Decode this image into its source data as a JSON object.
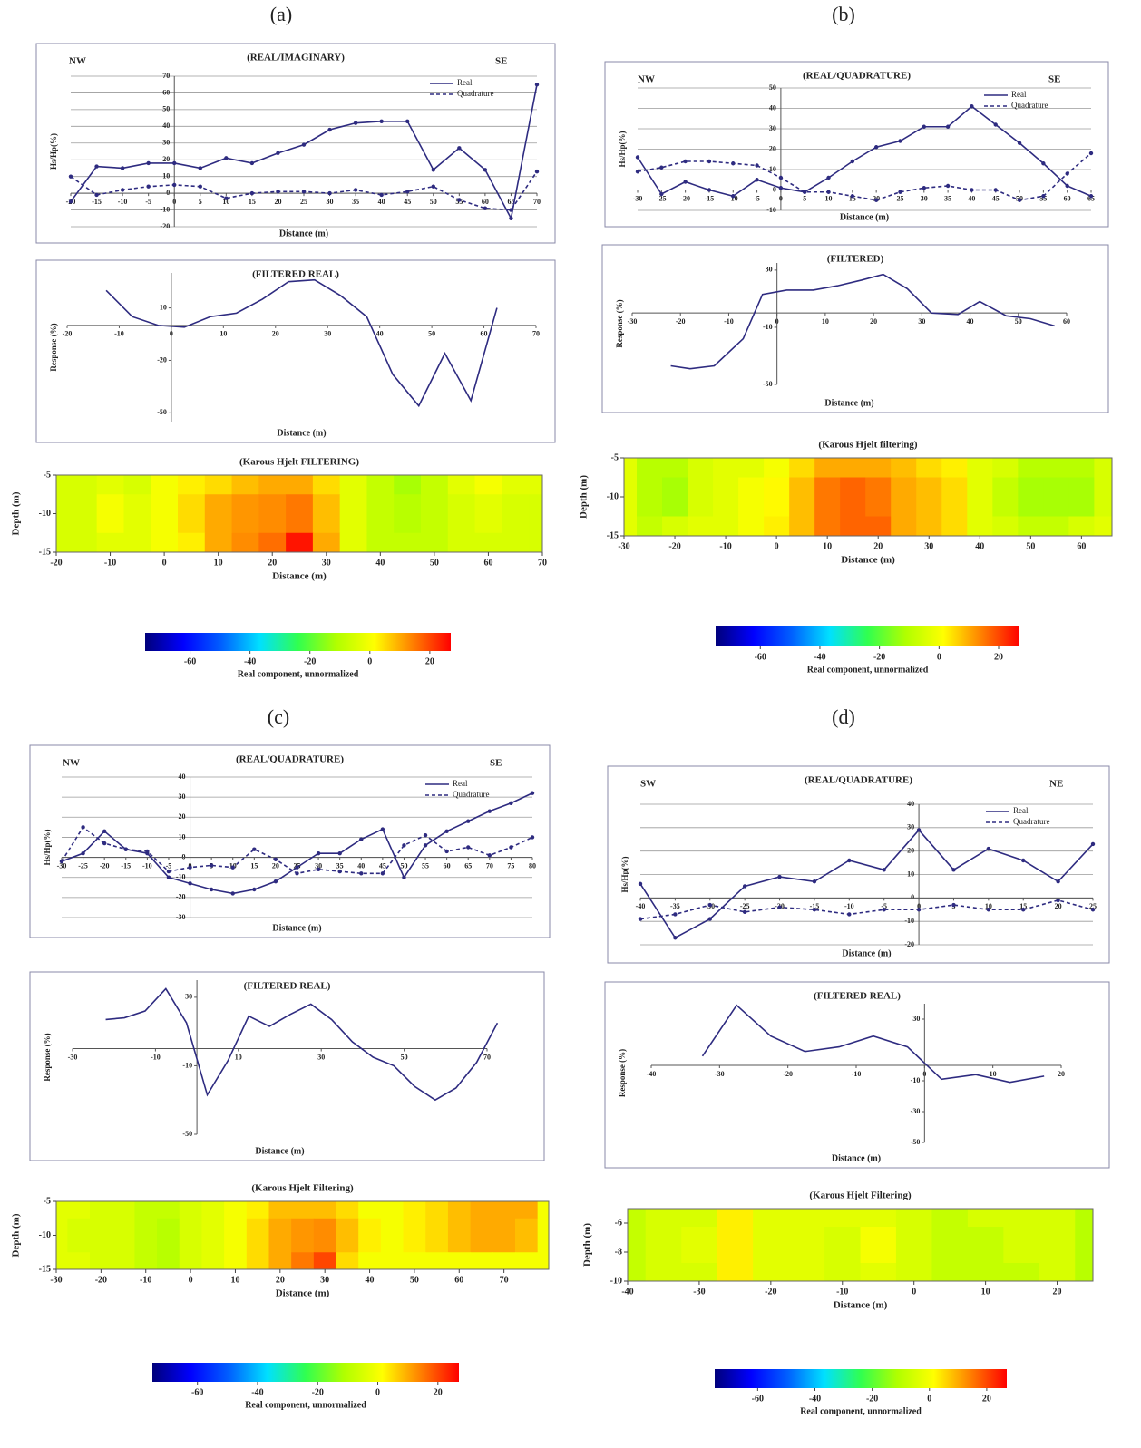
{
  "panel_labels": [
    "(a)",
    "(b)",
    "(c)",
    "(d)"
  ],
  "chart_data": [
    {
      "type": "line",
      "title": "(REAL/IMAGINARY)",
      "corner_labels": [
        "NW",
        "SE"
      ],
      "xlabel": "Distance (m)",
      "ylabel": "Hs/Hp(%)",
      "xlim": [
        -20,
        70
      ],
      "ylim": [
        -20,
        70
      ],
      "xticks": [
        -20,
        -15,
        -10,
        -5,
        0,
        5,
        10,
        15,
        20,
        25,
        30,
        35,
        40,
        45,
        50,
        55,
        60,
        65,
        70
      ],
      "yticks": [
        -20,
        -10,
        0,
        10,
        20,
        30,
        40,
        50,
        60,
        70
      ],
      "grid": true,
      "legend": "upper right",
      "x": [
        -20,
        -15,
        -10,
        -5,
        0,
        5,
        10,
        15,
        20,
        25,
        30,
        35,
        40,
        45,
        50,
        55,
        60,
        65,
        70
      ],
      "series": [
        {
          "name": "Real",
          "color": "#2e2b80",
          "dash": false,
          "markers": true,
          "values": [
            -5,
            16,
            15,
            18,
            18,
            15,
            21,
            18,
            24,
            29,
            38,
            42,
            43,
            43,
            14,
            27,
            14,
            -15,
            65
          ]
        },
        {
          "name": "Quadrature",
          "color": "#2e2b80",
          "dash": true,
          "markers": true,
          "values": [
            10,
            -1,
            2,
            4,
            5,
            4,
            -3,
            0,
            1,
            1,
            0,
            2,
            -1,
            1,
            4,
            -4,
            -9,
            -10,
            13
          ]
        }
      ]
    },
    {
      "type": "line",
      "title": "(FILTERED REAL)",
      "xlabel": "Distance (m)",
      "ylabel": "Response (%)",
      "xlim": [
        -20,
        70
      ],
      "ylim": [
        -55,
        30
      ],
      "xticks": [
        -20,
        -10,
        0,
        10,
        20,
        30,
        40,
        50,
        60,
        70
      ],
      "yticks": [
        -50,
        -20,
        10
      ],
      "grid": false,
      "x": [
        -12.5,
        -7.5,
        -2.5,
        2.5,
        7.5,
        12.5,
        17.5,
        22.5,
        27.5,
        32.5,
        37.5,
        42.5,
        47.5,
        52.5,
        57.5,
        62.5
      ],
      "values": [
        20,
        5,
        0,
        -1,
        5,
        7,
        15,
        25,
        26,
        17,
        5,
        -28,
        -46,
        -16,
        -43,
        10
      ],
      "color": "#2e2b80"
    },
    {
      "type": "heatmap",
      "title": "(Karous Hjelt FILTERING)",
      "xlabel": "Distance (m)",
      "ylabel": "Depth (m)",
      "xlim": [
        -20,
        70
      ],
      "ylim": [
        -15,
        -5
      ],
      "xticks": [
        -20,
        -10,
        0,
        10,
        20,
        30,
        40,
        50,
        60,
        70
      ],
      "yticks": [
        -15,
        -10,
        -5
      ],
      "x": [
        -20,
        -15,
        -10,
        -5,
        0,
        5,
        10,
        15,
        20,
        25,
        30,
        35,
        40,
        45,
        50,
        55,
        60,
        65,
        70
      ],
      "y": [
        -5,
        -10,
        -15
      ],
      "z": [
        [
          -5,
          -5,
          -3,
          -5,
          0,
          3,
          5,
          8,
          10,
          10,
          5,
          -3,
          -8,
          -12,
          -8,
          -3,
          0,
          -3,
          -3
        ],
        [
          -5,
          -5,
          0,
          -3,
          0,
          5,
          10,
          12,
          13,
          15,
          8,
          -3,
          -8,
          -10,
          -8,
          -5,
          -3,
          -5,
          -5
        ],
        [
          -5,
          -5,
          -3,
          -3,
          0,
          3,
          10,
          13,
          16,
          25,
          10,
          -3,
          -8,
          -8,
          -8,
          -5,
          -5,
          -5,
          -5
        ]
      ]
    },
    {
      "type": "colorbar",
      "xlabel": "Real component, unnormalized",
      "xlim": [
        -75,
        27
      ],
      "xticks": [
        -60,
        -40,
        -20,
        0,
        20
      ],
      "colors": [
        "#00007a",
        "#0000ff",
        "#0060ff",
        "#00e0ff",
        "#30ff50",
        "#b0ff00",
        "#ffff00",
        "#ff8000",
        "#ff0000"
      ]
    },
    {
      "type": "line",
      "title": "(REAL/QUADRATURE)",
      "corner_labels": [
        "NW",
        "SE"
      ],
      "xlabel": "Distance (m)",
      "ylabel": "Hs/Hp(%)",
      "xlim": [
        -30,
        65
      ],
      "ylim": [
        -10,
        50
      ],
      "xticks": [
        -30,
        -25,
        -20,
        -15,
        -10,
        -5,
        0,
        5,
        10,
        15,
        20,
        25,
        30,
        35,
        40,
        45,
        50,
        55,
        60,
        65
      ],
      "yticks": [
        -10,
        0,
        10,
        20,
        30,
        40,
        50
      ],
      "grid": true,
      "legend": "upper right",
      "x": [
        -30,
        -25,
        -20,
        -15,
        -10,
        -5,
        0,
        5,
        10,
        15,
        20,
        25,
        30,
        35,
        40,
        45,
        50,
        55,
        60,
        65
      ],
      "series": [
        {
          "name": "Real",
          "color": "#2e2b80",
          "dash": false,
          "markers": true,
          "values": [
            16,
            -2,
            4,
            0,
            -3,
            5,
            1,
            -1,
            6,
            14,
            21,
            24,
            31,
            31,
            41,
            32,
            23,
            13,
            2,
            -3
          ]
        },
        {
          "name": "Quadrature",
          "color": "#2e2b80",
          "dash": true,
          "markers": true,
          "values": [
            9,
            11,
            14,
            14,
            13,
            12,
            6,
            -1,
            -1,
            -3,
            -5,
            -1,
            1,
            2,
            0,
            0,
            -5,
            -3,
            8,
            18
          ]
        }
      ]
    },
    {
      "type": "line",
      "title": "(FILTERED)",
      "xlabel": "Distance (m)",
      "ylabel": "Response (%)",
      "xlim": [
        -30,
        60
      ],
      "ylim": [
        -50,
        35
      ],
      "xticks": [
        -30,
        -20,
        -10,
        0,
        10,
        20,
        30,
        40,
        50,
        60
      ],
      "yticks": [
        -50,
        -10,
        30
      ],
      "grid": false,
      "x": [
        -22,
        -18,
        -13,
        -7,
        -3,
        2,
        7.5,
        12.5,
        17.5,
        22,
        27,
        32,
        37.5,
        42,
        47.5,
        52.5,
        57.5
      ],
      "values": [
        -37,
        -39,
        -37,
        -18,
        13,
        16,
        16,
        19,
        23,
        27,
        17,
        0,
        -1,
        8,
        -2,
        -4,
        -9
      ],
      "color": "#2e2b80"
    },
    {
      "type": "heatmap",
      "title": "(Karous Hjelt filtering)",
      "xlabel": "Distance (m)",
      "ylabel": "Depth (m)",
      "xlim": [
        -30,
        66
      ],
      "ylim": [
        -15,
        -5
      ],
      "xticks": [
        -30,
        -20,
        -10,
        0,
        10,
        20,
        30,
        40,
        50,
        60
      ],
      "yticks": [
        -15,
        -10,
        -5
      ],
      "x": [
        -30,
        -25,
        -20,
        -15,
        -10,
        -5,
        0,
        5,
        10,
        15,
        20,
        25,
        30,
        35,
        40,
        45,
        50,
        55,
        60,
        65
      ],
      "y": [
        -5,
        -10,
        -15
      ],
      "z": [
        [
          -3,
          -10,
          -10,
          -5,
          -3,
          -3,
          0,
          5,
          10,
          10,
          10,
          8,
          5,
          3,
          -3,
          -5,
          -10,
          -10,
          -10,
          -5
        ],
        [
          -3,
          -10,
          -12,
          -5,
          -3,
          0,
          2,
          8,
          15,
          17,
          15,
          10,
          8,
          5,
          -3,
          -8,
          -12,
          -12,
          -12,
          -5
        ],
        [
          -3,
          -8,
          -5,
          -3,
          -3,
          0,
          3,
          8,
          15,
          17,
          17,
          10,
          8,
          5,
          -3,
          -5,
          -8,
          -8,
          -5,
          -3
        ]
      ]
    },
    {
      "type": "colorbar",
      "xlabel": "Real component, unnormalized",
      "xlim": [
        -75,
        27
      ],
      "xticks": [
        -60,
        -40,
        -20,
        0,
        20
      ],
      "colors": [
        "#00007a",
        "#0000ff",
        "#0060ff",
        "#00e0ff",
        "#30ff50",
        "#b0ff00",
        "#ffff00",
        "#ff8000",
        "#ff0000"
      ]
    },
    {
      "type": "line",
      "title": "(REAL/QUADRATURE)",
      "corner_labels": [
        "NW",
        "SE"
      ],
      "xlabel": "Distance (m)",
      "ylabel": "Hs/Hp(%)",
      "xlim": [
        -30,
        80
      ],
      "ylim": [
        -30,
        40
      ],
      "xticks": [
        -30,
        -25,
        -20,
        -15,
        -10,
        -5,
        0,
        5,
        10,
        15,
        20,
        25,
        30,
        35,
        40,
        45,
        50,
        55,
        60,
        65,
        70,
        75,
        80
      ],
      "yticks": [
        -30,
        -20,
        -10,
        0,
        10,
        20,
        30,
        40
      ],
      "grid": true,
      "legend": "upper right",
      "x": [
        -30,
        -25,
        -20,
        -15,
        -10,
        -5,
        0,
        5,
        10,
        15,
        20,
        25,
        30,
        35,
        40,
        45,
        50,
        55,
        60,
        65,
        70,
        75,
        80
      ],
      "series": [
        {
          "name": "Real",
          "color": "#2e2b80",
          "dash": false,
          "markers": true,
          "values": [
            -2,
            2,
            13,
            4,
            2,
            -10,
            -13,
            -16,
            -18,
            -16,
            -12,
            -5,
            2,
            2,
            9,
            14,
            -10,
            6,
            13,
            18,
            23,
            27,
            32
          ]
        },
        {
          "name": "Quadrature",
          "color": "#2e2b80",
          "dash": true,
          "markers": true,
          "values": [
            -2,
            15,
            7,
            4,
            3,
            -7,
            -5,
            -4,
            -5,
            4,
            -1,
            -8,
            -6,
            -7,
            -8,
            -8,
            6,
            11,
            3,
            5,
            1,
            5,
            10
          ]
        }
      ]
    },
    {
      "type": "line",
      "title": "(FILTERED REAL)",
      "xlabel": "Distance (m)",
      "ylabel": "Response (%)",
      "xlim": [
        -30,
        70
      ],
      "ylim": [
        -50,
        40
      ],
      "xticks": [
        -30,
        -10,
        10,
        30,
        50,
        70
      ],
      "yticks": [
        -50,
        -10,
        30
      ],
      "grid": false,
      "x": [
        -22,
        -17.5,
        -12.5,
        -7.5,
        -2.5,
        2.5,
        7.5,
        12.5,
        17.5,
        22.5,
        27.5,
        32.5,
        37.5,
        42.5,
        47.5,
        52.5,
        57.5,
        62.5,
        67.5,
        72.5
      ],
      "values": [
        17,
        18,
        22,
        35,
        15,
        -27,
        -7,
        19,
        13,
        20,
        26,
        17,
        4,
        -5,
        -10,
        -22,
        -30,
        -23,
        -8,
        15
      ],
      "color": "#2e2b80"
    },
    {
      "type": "heatmap",
      "title": "(Karous Hjelt Filtering)",
      "xlabel": "Distance (m)",
      "ylabel": "Depth (m)",
      "xlim": [
        -30,
        80
      ],
      "ylim": [
        -15,
        -5
      ],
      "xticks": [
        -30,
        -20,
        -10,
        0,
        10,
        20,
        30,
        40,
        50,
        60,
        70
      ],
      "yticks": [
        -15,
        -10,
        -5
      ],
      "x": [
        -30,
        -25,
        -20,
        -15,
        -10,
        -5,
        0,
        5,
        10,
        15,
        20,
        25,
        30,
        35,
        40,
        45,
        50,
        55,
        60,
        65,
        70,
        75,
        80
      ],
      "y": [
        -5,
        -10,
        -15
      ],
      "z": [
        [
          -3,
          -3,
          -5,
          -5,
          -8,
          -8,
          -5,
          -3,
          0,
          3,
          8,
          8,
          8,
          5,
          0,
          0,
          3,
          5,
          8,
          10,
          10,
          10,
          0
        ],
        [
          -3,
          -5,
          -5,
          -5,
          -8,
          -10,
          -5,
          -3,
          0,
          5,
          10,
          12,
          13,
          8,
          3,
          0,
          3,
          5,
          8,
          10,
          10,
          8,
          0
        ],
        [
          -3,
          -3,
          -5,
          -5,
          -8,
          -10,
          -5,
          -3,
          0,
          5,
          10,
          15,
          20,
          5,
          0,
          0,
          0,
          0,
          0,
          0,
          0,
          0,
          0
        ]
      ]
    },
    {
      "type": "colorbar",
      "xlabel": "Real component, unnormalized",
      "xlim": [
        -75,
        27
      ],
      "xticks": [
        -60,
        -40,
        -20,
        0,
        20
      ],
      "colors": [
        "#00007a",
        "#0000ff",
        "#0060ff",
        "#00e0ff",
        "#30ff50",
        "#b0ff00",
        "#ffff00",
        "#ff8000",
        "#ff0000"
      ]
    },
    {
      "type": "line",
      "title": "(REAL/QUADRATURE)",
      "corner_labels": [
        "SW",
        "NE"
      ],
      "xlabel": "Distance (m)",
      "ylabel": "Hs/Hp(%)",
      "xlim": [
        -40,
        25
      ],
      "ylim": [
        -20,
        40
      ],
      "xticks": [
        -40,
        -35,
        -30,
        -25,
        -20,
        -15,
        -10,
        -5,
        0,
        5,
        10,
        15,
        20,
        25
      ],
      "yticks": [
        -20,
        -10,
        0,
        10,
        20,
        30,
        40
      ],
      "grid": true,
      "legend": "upper right",
      "x": [
        -40,
        -35,
        -30,
        -25,
        -20,
        -15,
        -10,
        -5,
        0,
        5,
        10,
        15,
        20,
        25
      ],
      "series": [
        {
          "name": "Real",
          "color": "#2e2b80",
          "dash": false,
          "markers": true,
          "values": [
            6,
            -17,
            -9,
            5,
            9,
            7,
            16,
            12,
            29,
            12,
            21,
            16,
            7,
            23
          ]
        },
        {
          "name": "Quadrature",
          "color": "#2e2b80",
          "dash": true,
          "markers": true,
          "values": [
            -9,
            -7,
            -3,
            -6,
            -4,
            -5,
            -7,
            -5,
            -5,
            -3,
            -5,
            -5,
            -1,
            -5
          ]
        }
      ]
    },
    {
      "type": "line",
      "title": "(FILTERED REAL)",
      "xlabel": "Distance (m)",
      "ylabel": "Response (%)",
      "xlim": [
        -40,
        20
      ],
      "ylim": [
        -50,
        40
      ],
      "xticks": [
        -40,
        -30,
        -20,
        -10,
        0,
        10,
        20
      ],
      "yticks": [
        -50,
        -30,
        -10,
        30
      ],
      "grid": false,
      "x": [
        -32.5,
        -27.5,
        -22.5,
        -17.5,
        -12.5,
        -7.5,
        -2.5,
        2.5,
        7.5,
        12.5,
        17.5
      ],
      "values": [
        6,
        39,
        19,
        9,
        12,
        19,
        12,
        -9,
        -6,
        -11,
        -7
      ],
      "color": "#2e2b80"
    },
    {
      "type": "heatmap",
      "title": "(Karous Hjelt Filtering)",
      "xlabel": "Distance (m)",
      "ylabel": "Depth (m)",
      "xlim": [
        -40,
        25
      ],
      "ylim": [
        -10,
        -5
      ],
      "xticks": [
        -40,
        -30,
        -20,
        -10,
        0,
        10,
        20
      ],
      "yticks": [
        -10,
        -8,
        -6
      ],
      "x": [
        -40,
        -35,
        -30,
        -25,
        -20,
        -15,
        -10,
        -5,
        0,
        5,
        10,
        15,
        20,
        25
      ],
      "y": [
        -5,
        -7.5,
        -10
      ],
      "z": [
        [
          -8,
          -5,
          -5,
          3,
          -3,
          -3,
          -3,
          -3,
          -5,
          -8,
          -5,
          -5,
          -5,
          -10
        ],
        [
          -8,
          -5,
          -3,
          3,
          -3,
          -3,
          -5,
          0,
          -5,
          -8,
          -8,
          -5,
          -5,
          -10
        ],
        [
          -8,
          -5,
          -5,
          3,
          -3,
          -3,
          -5,
          -3,
          -5,
          -8,
          -8,
          -8,
          -5,
          -10
        ]
      ]
    },
    {
      "type": "colorbar",
      "xlabel": "Real component, unnormalized",
      "xlim": [
        -75,
        27
      ],
      "xticks": [
        -60,
        -40,
        -20,
        0,
        20
      ],
      "colors": [
        "#00007a",
        "#0000ff",
        "#0060ff",
        "#00e0ff",
        "#30ff50",
        "#b0ff00",
        "#ffff00",
        "#ff8000",
        "#ff0000"
      ]
    }
  ]
}
